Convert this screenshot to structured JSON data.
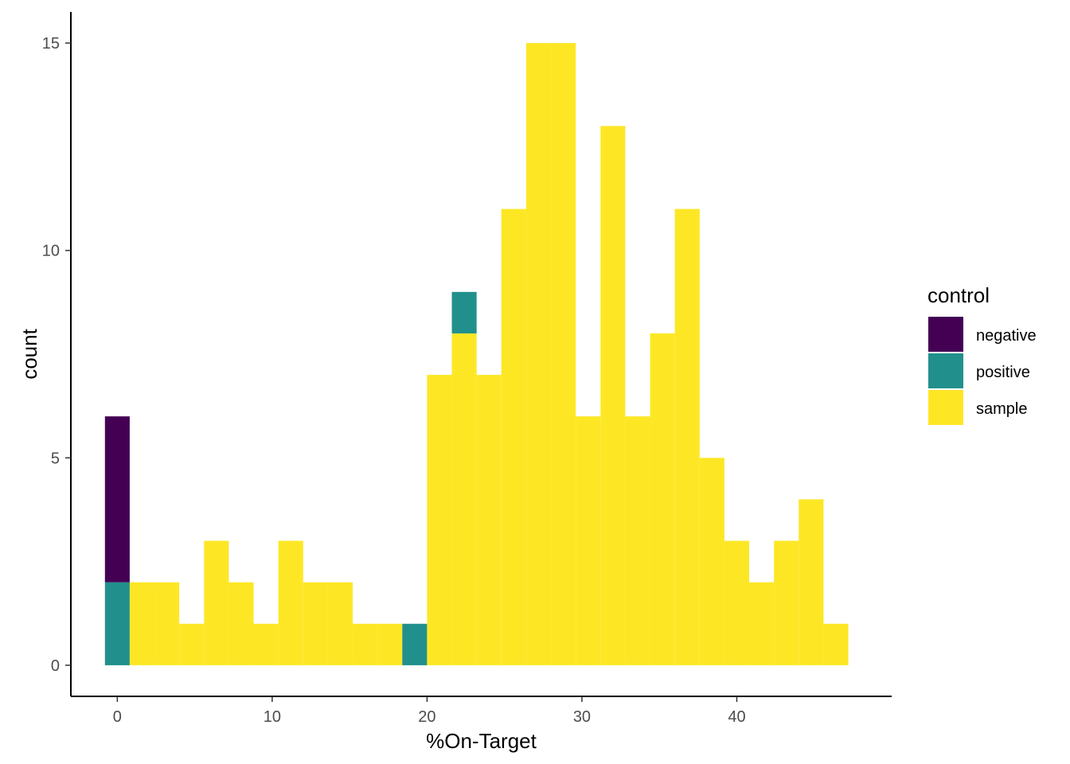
{
  "chart_data": {
    "type": "bar",
    "subtype": "stacked-histogram",
    "xlabel": "%On-Target",
    "ylabel": "count",
    "xlim": [
      -3.0,
      50.0
    ],
    "ylim": [
      -0.75,
      15.75
    ],
    "x_ticks": [
      0,
      10,
      20,
      30,
      40
    ],
    "y_ticks": [
      0,
      5,
      10,
      15
    ],
    "grid": false,
    "legend": {
      "title": "control",
      "position": "right",
      "entries": [
        {
          "name": "negative",
          "color": "#440154"
        },
        {
          "name": "positive",
          "color": "#21908C"
        },
        {
          "name": "sample",
          "color": "#FDE725"
        }
      ]
    },
    "bin_width": 1.6,
    "bin_centers": [
      0.0,
      1.6,
      3.2,
      4.8,
      6.4,
      8.0,
      9.6,
      11.2,
      12.8,
      14.4,
      16.0,
      17.6,
      19.2,
      20.8,
      22.4,
      24.0,
      25.6,
      27.2,
      28.8,
      30.4,
      32.0,
      33.6,
      35.2,
      36.8,
      38.4,
      40.0,
      41.6,
      43.2,
      44.8,
      46.4
    ],
    "series": [
      {
        "name": "negative",
        "values": [
          4,
          0,
          0,
          0,
          0,
          0,
          0,
          0,
          0,
          0,
          0,
          0,
          0,
          0,
          0,
          0,
          0,
          0,
          0,
          0,
          0,
          0,
          0,
          0,
          0,
          0,
          0,
          0,
          0,
          0
        ]
      },
      {
        "name": "positive",
        "values": [
          2,
          0,
          0,
          0,
          0,
          0,
          0,
          0,
          0,
          0,
          0,
          0,
          1,
          0,
          1,
          0,
          0,
          0,
          0,
          0,
          0,
          0,
          0,
          0,
          0,
          0,
          0,
          0,
          0,
          0
        ]
      },
      {
        "name": "sample",
        "values": [
          0,
          2,
          2,
          1,
          3,
          2,
          1,
          3,
          2,
          2,
          1,
          1,
          0,
          7,
          8,
          7,
          11,
          15,
          15,
          6,
          13,
          6,
          8,
          11,
          5,
          3,
          2,
          3,
          4,
          1
        ]
      }
    ]
  }
}
